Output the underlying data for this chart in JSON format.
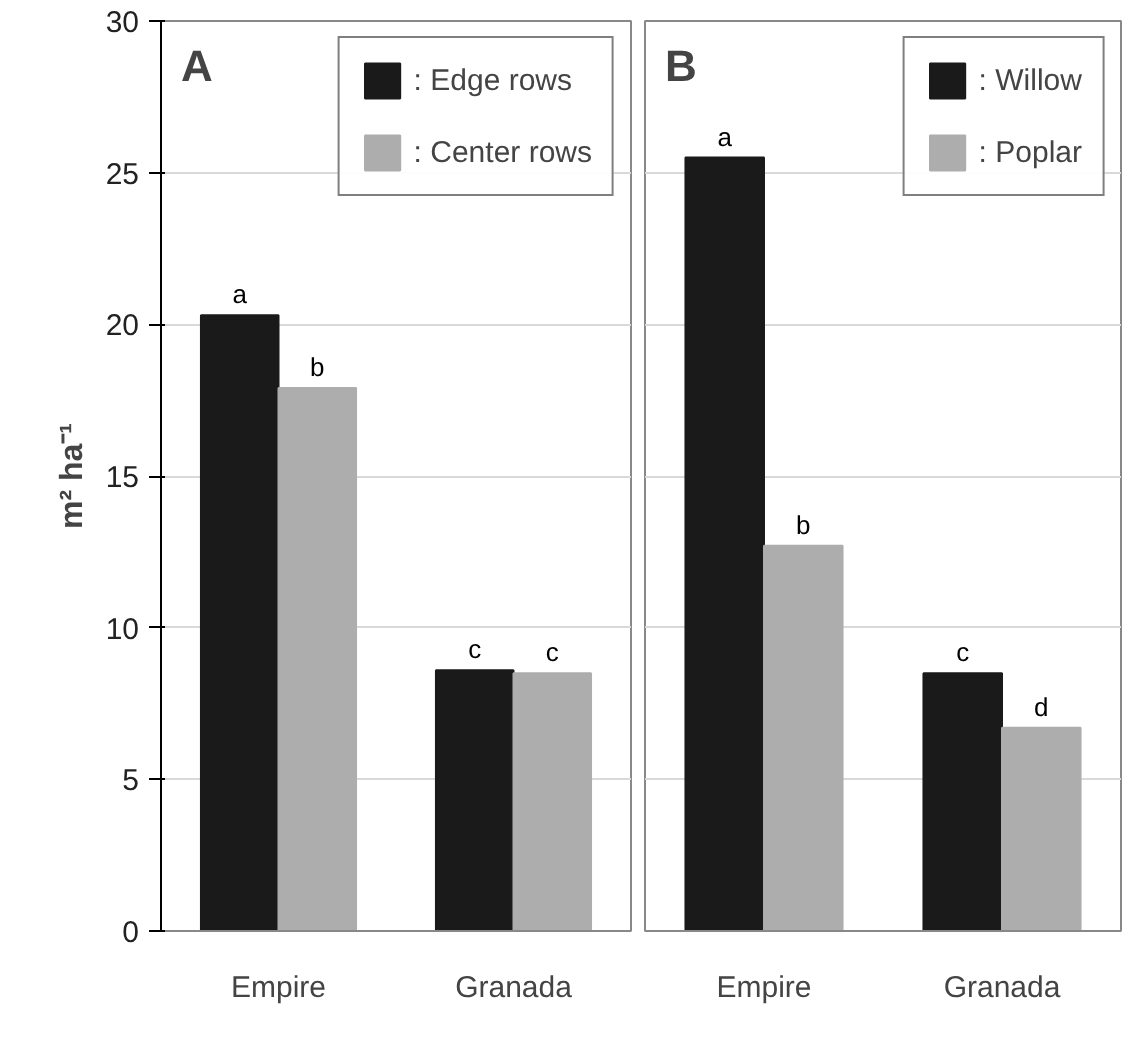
{
  "chart_data": [
    {
      "type": "bar",
      "title": "A",
      "ylabel": "m² ha⁻¹",
      "categories": [
        "Empire",
        "Granada"
      ],
      "ylim": [
        0,
        30
      ],
      "yticks": [
        0,
        5,
        10,
        15,
        20,
        25,
        30
      ],
      "grid": "y",
      "legend": "top right",
      "series": [
        {
          "name": ": Edge rows",
          "color": "#1a1a1a",
          "values": [
            20.3,
            8.6
          ],
          "value_labels": [
            "a",
            "c"
          ]
        },
        {
          "name": ": Center rows",
          "color": "#adadad",
          "values": [
            17.9,
            8.5
          ],
          "value_labels": [
            "b",
            "c"
          ]
        }
      ]
    },
    {
      "type": "bar",
      "title": "B",
      "categories": [
        "Empire",
        "Granada"
      ],
      "ylim": [
        0,
        30
      ],
      "yticks": [
        0,
        5,
        10,
        15,
        20,
        25,
        30
      ],
      "grid": "y",
      "legend": "top right",
      "tick_labels": "x",
      "series": [
        {
          "name": ": Willow",
          "color": "#1a1a1a",
          "values": [
            25.5,
            8.5
          ],
          "value_labels": [
            "a",
            "c"
          ]
        },
        {
          "name": ": Poplar",
          "color": "#adadad",
          "values": [
            12.7,
            6.7
          ],
          "value_labels": [
            "b",
            "d"
          ]
        }
      ]
    }
  ]
}
